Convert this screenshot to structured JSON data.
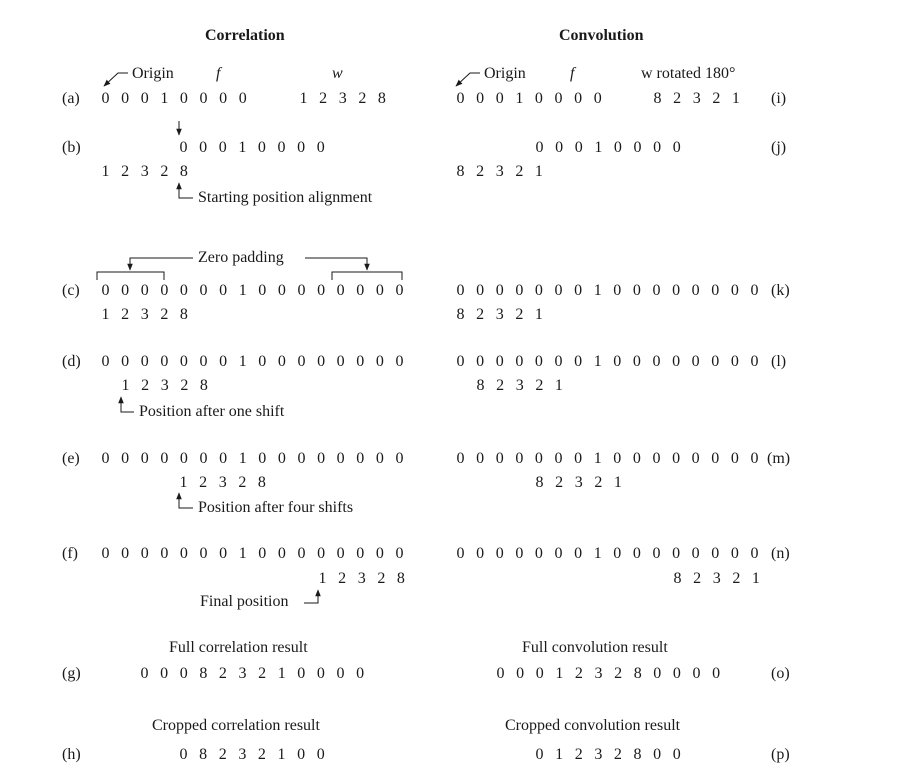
{
  "headings": {
    "correlation": "Correlation",
    "convolution": "Convolution"
  },
  "labels": {
    "a": "(a)",
    "b": "(b)",
    "c": "(c)",
    "d": "(d)",
    "e": "(e)",
    "f": "(f)",
    "g": "(g)",
    "h": "(h)",
    "i": "(i)",
    "j": "(j)",
    "k": "(k)",
    "l": "(l)",
    "m": "(m)",
    "n": "(n)",
    "o": "(o)",
    "p": "(p)"
  },
  "annotations": {
    "origin_left": "Origin",
    "f_left": "f",
    "w": "w",
    "origin_right": "Origin",
    "f_right": "f",
    "w_rotated": "w rotated 180°",
    "start_align": "Starting position alignment",
    "zero_padding": "Zero padding",
    "after_one": "Position after one shift",
    "after_four": "Position after four shifts",
    "final_pos": "Final position",
    "full_corr": "Full correlation result",
    "full_conv": "Full convolution result",
    "crop_corr": "Cropped correlation result",
    "crop_conv": "Cropped convolution result"
  },
  "sequences": {
    "f": "0 0 0 1 0 0 0 0",
    "w": "1 2 3 2 8",
    "w_rot": "8 2 3 2 1",
    "padded": "0 0 0 0 0 0 0 1 0 0 0 0 0 0 0 0",
    "full_corr": "0 0 0 8 2 3 2 1 0 0 0 0",
    "full_conv": "0 0 0 1 2 3 2 8 0 0 0 0",
    "crop_corr": "0 8 2 3 2 1 0 0",
    "crop_conv": "0 1 2 3 2 8 0 0"
  }
}
